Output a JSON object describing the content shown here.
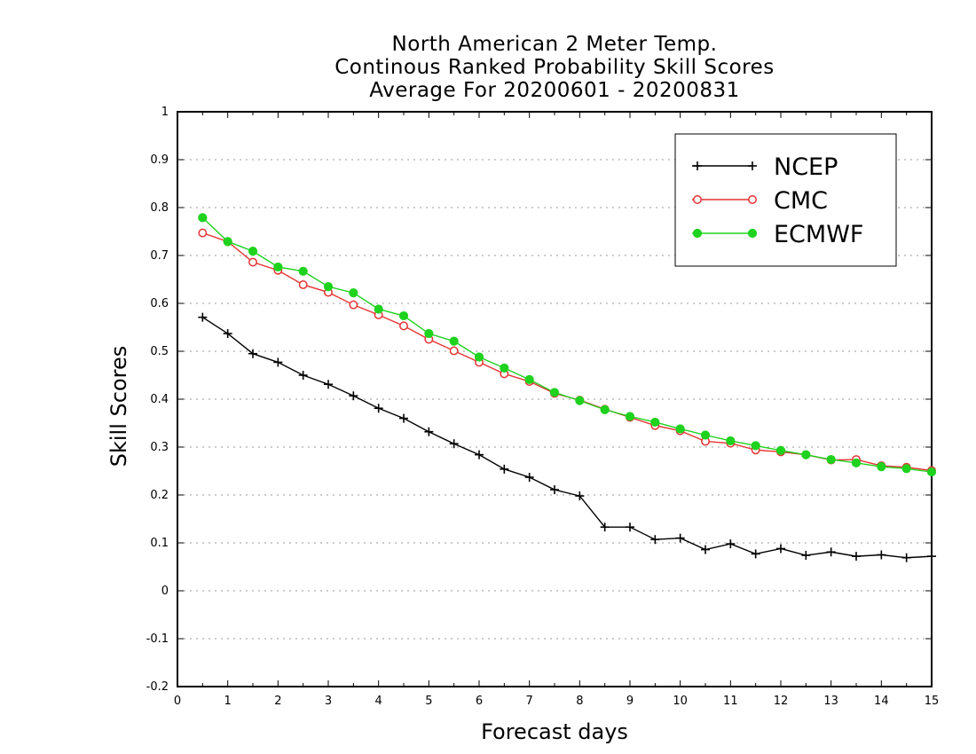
{
  "chart_data": {
    "type": "line",
    "title_lines": [
      "North American 2 Meter Temp.",
      "Continous Ranked Probability Skill Scores",
      "Average For 20200601 - 20200831"
    ],
    "xlabel": "Forecast days",
    "ylabel": "Skill Scores",
    "xlim": [
      0,
      15
    ],
    "ylim": [
      -0.2,
      1
    ],
    "xticks": [
      0,
      1,
      2,
      3,
      4,
      5,
      6,
      7,
      8,
      9,
      10,
      11,
      12,
      13,
      14,
      15
    ],
    "yticks": [
      -0.2,
      -0.1,
      0,
      0.1,
      0.2,
      0.3,
      0.4,
      0.5,
      0.6,
      0.7,
      0.8,
      0.9,
      1
    ],
    "ytick_labels": [
      "-0.2",
      "-0.1",
      "0",
      "0.1",
      "0.2",
      "0.3",
      "0.4",
      "0.5",
      "0.6",
      "0.7",
      "0.8",
      "0.9",
      "1"
    ],
    "grid": "horizontal dotted",
    "legend_position": "top-right",
    "x": [
      0.5,
      1,
      1.5,
      2,
      2.5,
      3,
      3.5,
      4,
      4.5,
      5,
      5.5,
      6,
      6.5,
      7,
      7.5,
      8,
      8.5,
      9,
      9.5,
      10,
      10.5,
      11,
      11.5,
      12,
      12.5,
      13,
      13.5,
      14,
      14.5,
      15
    ],
    "series": [
      {
        "name": "NCEP",
        "color": "#000000",
        "marker": "plus",
        "values": [
          0.571,
          0.537,
          0.495,
          0.477,
          0.45,
          0.431,
          0.407,
          0.381,
          0.36,
          0.332,
          0.307,
          0.284,
          0.254,
          0.237,
          0.211,
          0.198,
          0.133,
          0.133,
          0.107,
          0.11,
          0.086,
          0.098,
          0.077,
          0.088,
          0.074,
          0.081,
          0.072,
          0.075,
          0.069,
          0.072
        ]
      },
      {
        "name": "CMC",
        "color": "#e63232",
        "marker": "open-circle",
        "values": [
          0.747,
          0.729,
          0.686,
          0.669,
          0.639,
          0.623,
          0.597,
          0.576,
          0.553,
          0.525,
          0.501,
          0.477,
          0.453,
          0.437,
          0.412,
          0.398,
          0.379,
          0.362,
          0.345,
          0.334,
          0.312,
          0.308,
          0.294,
          0.29,
          0.284,
          0.273,
          0.274,
          0.261,
          0.258,
          0.251
        ]
      },
      {
        "name": "ECMWF",
        "color": "#1ed21e",
        "marker": "filled-circle",
        "values": [
          0.779,
          0.729,
          0.709,
          0.676,
          0.667,
          0.635,
          0.622,
          0.588,
          0.574,
          0.537,
          0.521,
          0.488,
          0.465,
          0.441,
          0.414,
          0.397,
          0.378,
          0.364,
          0.352,
          0.338,
          0.325,
          0.313,
          0.303,
          0.293,
          0.284,
          0.274,
          0.267,
          0.259,
          0.255,
          0.248
        ]
      }
    ]
  }
}
